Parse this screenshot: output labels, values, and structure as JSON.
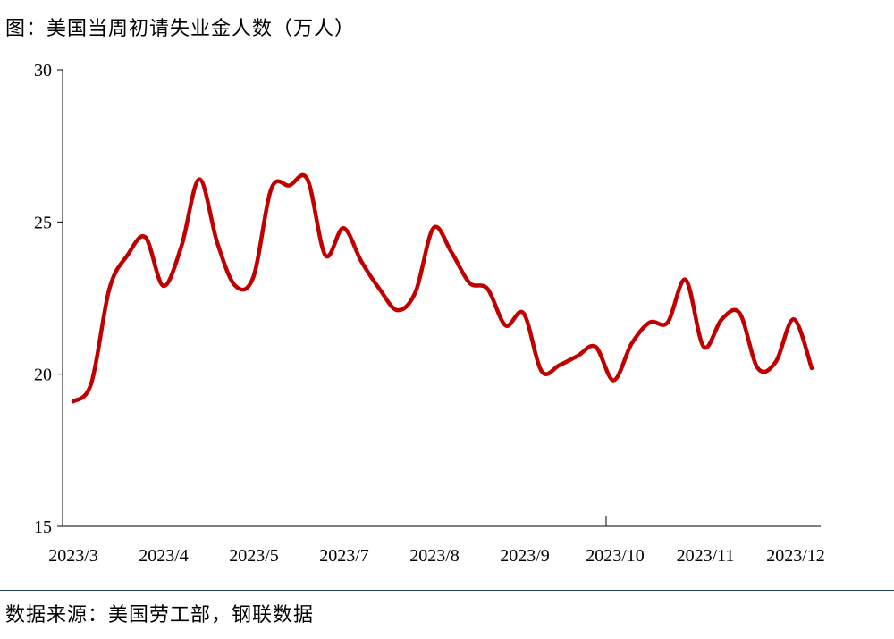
{
  "title": "图：美国当周初请失业金人数（万人）",
  "source": "数据来源：美国劳工部，钢联数据",
  "chart_data": {
    "type": "line",
    "title": "图：美国当周初请失业金人数（万人）",
    "xlabel": "",
    "ylabel": "",
    "ylim": [
      15,
      30
    ],
    "yticks": [
      15,
      20,
      25,
      30
    ],
    "xtick_labels": [
      "2023/3",
      "2023/4",
      "2023/5",
      "2023/7",
      "2023/8",
      "2023/9",
      "2023/10",
      "2023/11",
      "2023/12"
    ],
    "grid": false,
    "color": "#c00000",
    "series": [
      {
        "name": "",
        "values": [
          19.1,
          19.7,
          22.8,
          23.9,
          24.5,
          22.9,
          24.2,
          26.4,
          24.3,
          22.9,
          23.2,
          26.1,
          26.2,
          26.4,
          23.9,
          24.8,
          23.7,
          22.8,
          22.1,
          22.7,
          24.8,
          24.0,
          23.0,
          22.8,
          21.6,
          22.0,
          20.1,
          20.3,
          20.6,
          20.9,
          19.8,
          21.0,
          21.7,
          21.7,
          23.1,
          20.9,
          21.8,
          22.0,
          20.2,
          20.4,
          21.8,
          20.2
        ]
      }
    ]
  }
}
